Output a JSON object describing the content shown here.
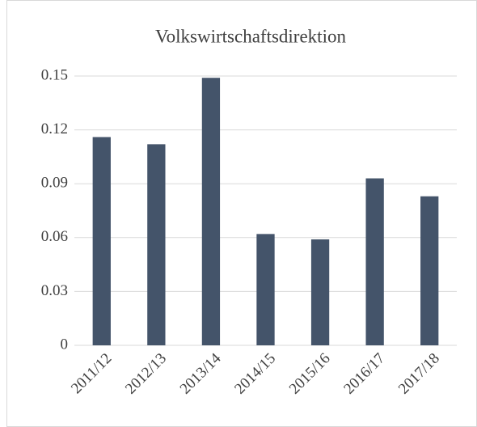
{
  "chart_data": {
    "type": "bar",
    "title": "Volkswirtschaftsdirektion",
    "categories": [
      "2011/12",
      "2012/13",
      "2013/14",
      "2014/15",
      "2015/16",
      "2016/17",
      "2017/18"
    ],
    "values": [
      0.116,
      0.112,
      0.149,
      0.062,
      0.059,
      0.093,
      0.083
    ],
    "color": "#44546a",
    "ylim": [
      0,
      0.15
    ],
    "yticks": [
      0,
      0.03,
      0.06,
      0.09,
      0.12,
      0.15
    ],
    "grid": true
  }
}
